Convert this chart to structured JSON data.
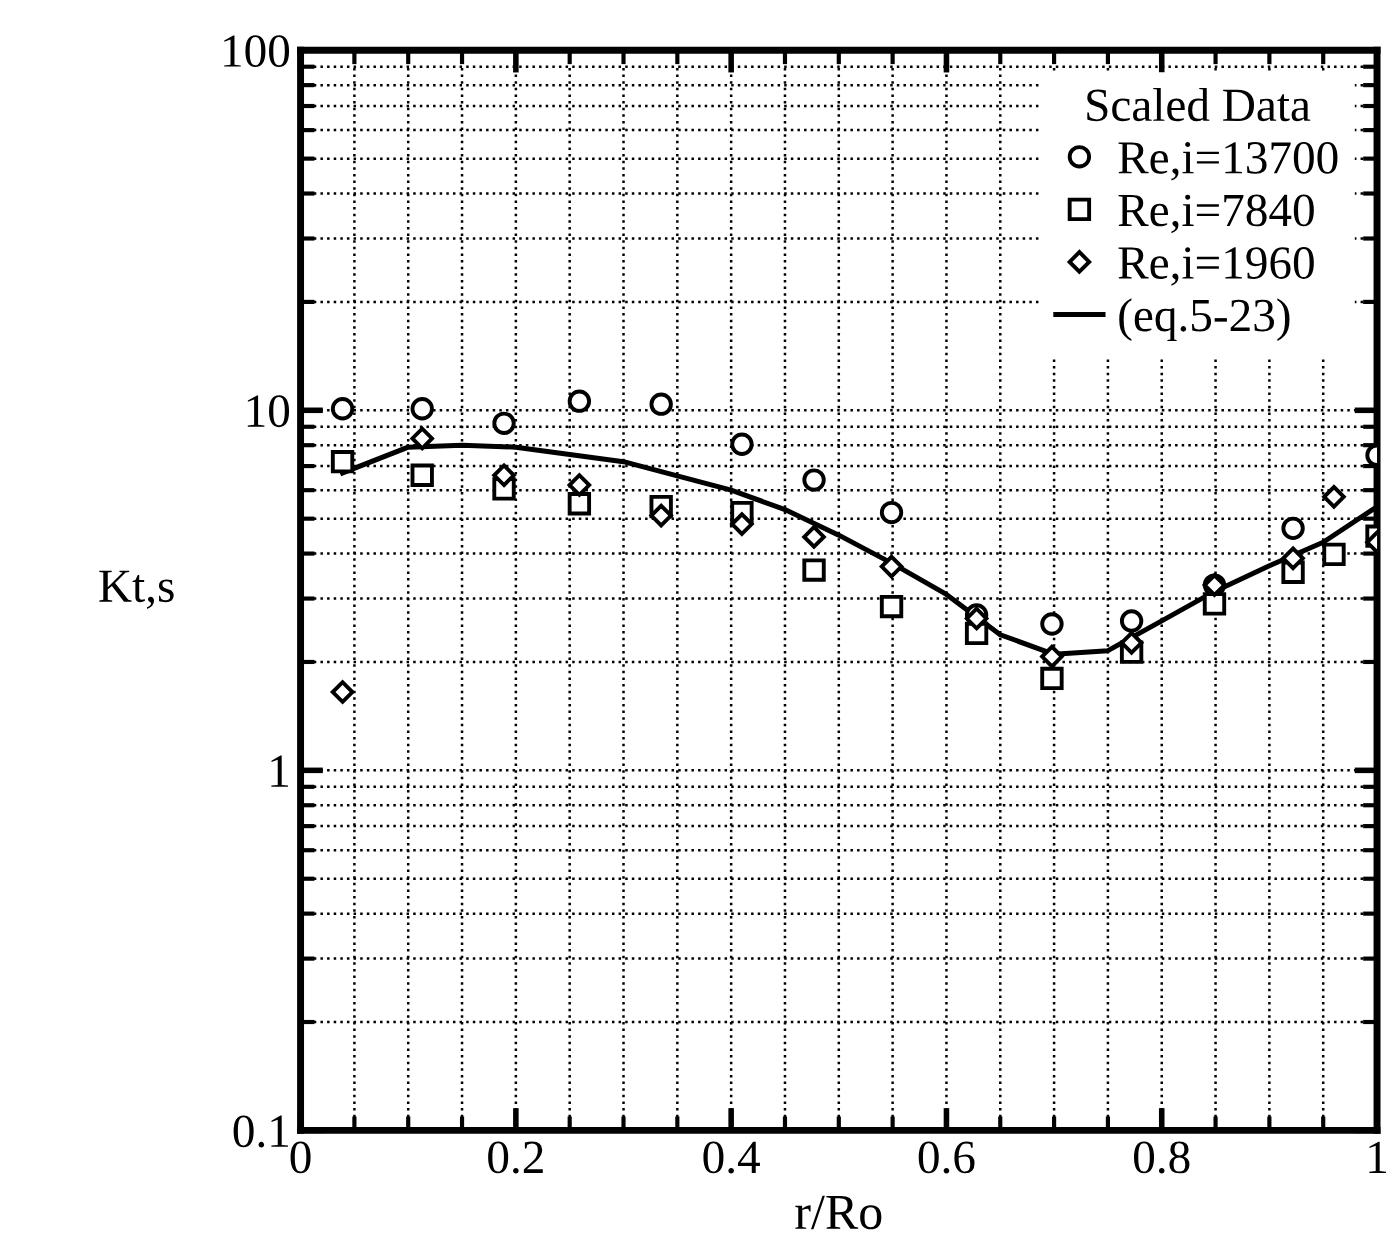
{
  "chart_data": {
    "type": "scatter",
    "xlabel": "r/Ro",
    "ylabel": "Kt,s",
    "legend_title": "Scaled Data",
    "legend": "top right",
    "grid": true,
    "log": "y",
    "xlim": [
      0,
      1
    ],
    "xticks": [
      0,
      0.2,
      0.4,
      0.6,
      0.8,
      1
    ],
    "ylim": [
      0.1,
      100
    ],
    "yticks": [
      0.1,
      1,
      10,
      100
    ],
    "series": [
      {
        "name": "Re,i=13700",
        "color": "#000000",
        "marker": "circle",
        "x": [
          0.039,
          0.113,
          0.189,
          0.259,
          0.335,
          0.41,
          0.477,
          0.549,
          0.628,
          0.698,
          0.772,
          0.849,
          0.922,
          1.0
        ],
        "values": [
          10.1,
          10.1,
          9.2,
          10.6,
          10.4,
          8.05,
          6.4,
          5.2,
          2.7,
          2.55,
          2.6,
          3.27,
          4.7,
          7.5
        ]
      },
      {
        "name": "Re,i=7840",
        "color": "#000000",
        "marker": "square",
        "x": [
          0.039,
          0.113,
          0.189,
          0.259,
          0.335,
          0.41,
          0.477,
          0.549,
          0.628,
          0.698,
          0.772,
          0.849,
          0.922,
          0.96,
          1.0
        ],
        "values": [
          7.2,
          6.6,
          6.05,
          5.5,
          5.4,
          5.2,
          3.6,
          2.85,
          2.4,
          1.8,
          2.13,
          2.9,
          3.55,
          3.98,
          4.47
        ]
      },
      {
        "name": "Re,i=1960",
        "color": "#000000",
        "marker": "diamond",
        "x": [
          0.039,
          0.113,
          0.189,
          0.259,
          0.335,
          0.41,
          0.477,
          0.549,
          0.628,
          0.698,
          0.772,
          0.849,
          0.922,
          0.96,
          1.0
        ],
        "values": [
          1.65,
          8.35,
          6.6,
          6.2,
          5.1,
          4.83,
          4.45,
          3.68,
          2.64,
          2.07,
          2.26,
          3.27,
          3.88,
          5.75,
          4.3
        ]
      },
      {
        "name": "(eq.5-23)",
        "type": "line",
        "color": "#000000",
        "marker": "none",
        "line_style": "solid",
        "x": [
          0.039,
          0.1,
          0.15,
          0.2,
          0.3,
          0.4,
          0.45,
          0.5,
          0.55,
          0.6,
          0.65,
          0.7,
          0.75,
          0.8,
          0.85,
          0.9,
          0.95,
          1.0
        ],
        "values": [
          6.7,
          7.9,
          8.0,
          7.9,
          7.2,
          6.0,
          5.3,
          4.5,
          3.75,
          3.08,
          2.38,
          2.1,
          2.15,
          2.6,
          3.15,
          3.7,
          4.3,
          5.4
        ]
      }
    ]
  }
}
